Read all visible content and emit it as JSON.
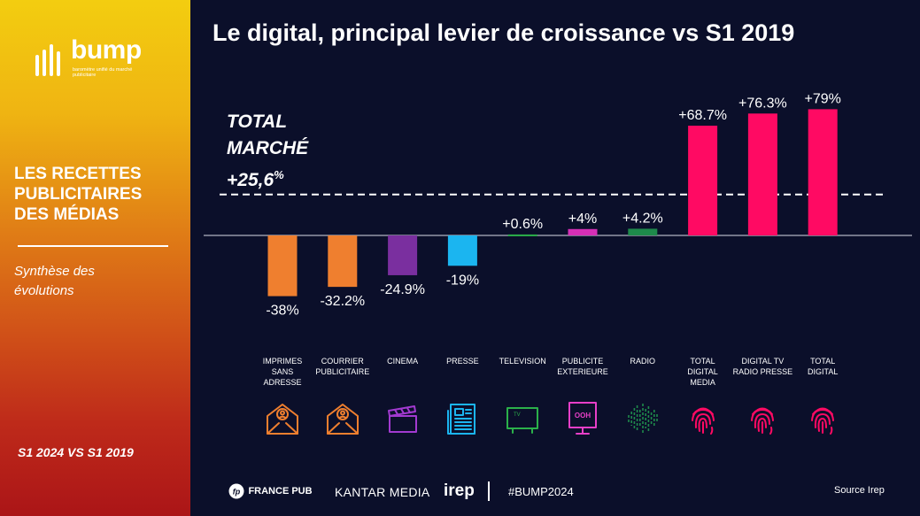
{
  "sidebar": {
    "logo_text": "bump",
    "logo_subtitle": "baromètre unifié du marché publicitaire",
    "title": "LES RECETTES\nPUBLICITAIRES\nDES MÉDIAS",
    "subtitle": "Synthèse des\névolutions",
    "period": "S1 2024 VS S1 2019"
  },
  "header": {
    "title": "Le digital, principal levier de croissance vs S1 2019"
  },
  "total_marche": {
    "label": "TOTAL\nMARCHÉ\n+25,6",
    "suffix": "%"
  },
  "chart_data": {
    "type": "bar",
    "title": "Le digital, principal levier de croissance vs S1 2019",
    "reference_line": {
      "label": "TOTAL MARCHÉ +25,6%",
      "value": 25.6
    },
    "ylim": [
      -38,
      79
    ],
    "categories": [
      "IMPRIMES SANS ADRESSE",
      "COURRIER PUBLICITAIRE",
      "CINEMA",
      "PRESSE",
      "TELEVISION",
      "PUBLICITE EXTERIEURE",
      "RADIO",
      "TOTAL DIGITAL MEDIA",
      "DIGITAL TV RADIO PRESSE",
      "TOTAL DIGITAL"
    ],
    "values": [
      -38,
      -32.2,
      -24.9,
      -19,
      0.6,
      4,
      4.2,
      68.7,
      76.3,
      79
    ],
    "value_labels": [
      "-38%",
      "-32.2%",
      "-24.9%",
      "-19%",
      "+0.6%",
      "+4%",
      "+4.2%",
      "+68.7%",
      "+76.3%",
      "+79%"
    ],
    "colors": [
      "#ef7f2f",
      "#ef7f2f",
      "#7a2f9f",
      "#1bb5f0",
      "#2bb04a",
      "#d62fb6",
      "#1e8a4b",
      "#ff0a63",
      "#ff0a63",
      "#ff0a63"
    ],
    "icons": [
      "envelope-person-icon",
      "envelope-person-icon",
      "clapperboard-icon",
      "newspaper-icon",
      "tv-icon",
      "billboard-ooh-icon",
      "soundwave-icon",
      "fingerprint-icon",
      "fingerprint-icon",
      "fingerprint-icon"
    ],
    "icon_colors": [
      "#ef7f2f",
      "#ef7f2f",
      "#a23ad0",
      "#1bb5f0",
      "#2bb04a",
      "#e83fc8",
      "#1e8a4b",
      "#ff0a63",
      "#ff0a63",
      "#ff0a63"
    ]
  },
  "footer": {
    "france_pub": "FRANCE PUB",
    "kantar": "KANTAR MEDIA",
    "irep": "irep",
    "hashtag": "#BUMP2024",
    "source": "Source Irep"
  }
}
